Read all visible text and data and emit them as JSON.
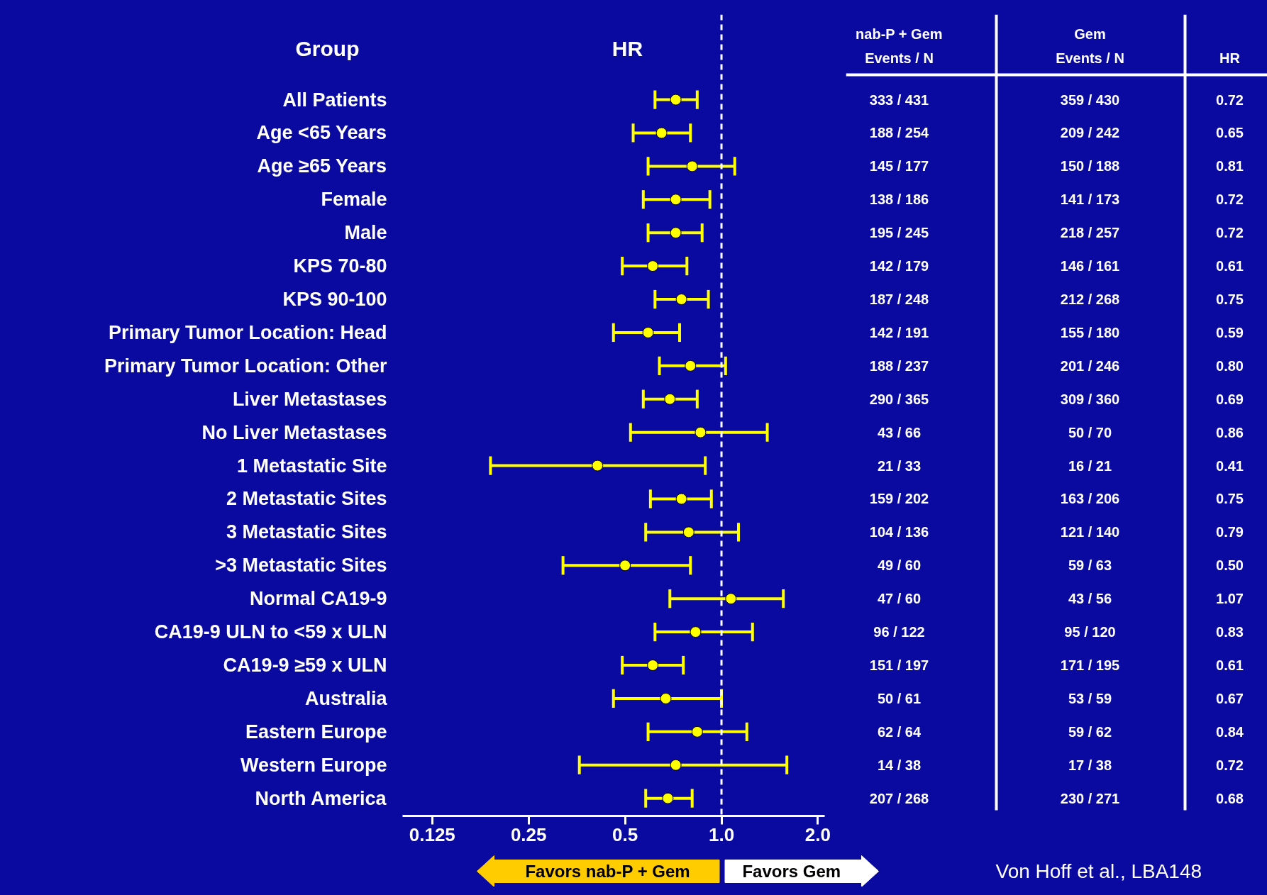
{
  "chart_data": {
    "type": "scatter",
    "orientation": "horizontal",
    "title": "HR",
    "ylabel": "Group",
    "categories": [
      "All Patients",
      "Age <65 Years",
      "Age ≥65 Years",
      "Female",
      "Male",
      "KPS 70-80",
      "KPS 90-100",
      "Primary Tumor Location: Head",
      "Primary Tumor Location: Other",
      "Liver Metastases",
      "No Liver Metastases",
      "1 Metastatic Site",
      "2 Metastatic Sites",
      "3 Metastatic Sites",
      ">3 Metastatic Sites",
      "Normal CA19-9",
      "CA19-9 ULN to <59 x ULN",
      "CA19-9 ≥59 x ULN",
      "Australia",
      "Eastern Europe",
      "Western Europe",
      "North America"
    ],
    "series": [
      {
        "color": "#ffff00",
        "values": [
          0.72,
          0.65,
          0.81,
          0.72,
          0.72,
          0.61,
          0.75,
          0.59,
          0.8,
          0.69,
          0.86,
          0.41,
          0.75,
          0.79,
          0.5,
          1.07,
          0.83,
          0.61,
          0.67,
          0.84,
          0.72,
          0.68
        ],
        "errors": [
          [
            0.62,
            0.84
          ],
          [
            0.53,
            0.8
          ],
          [
            0.59,
            1.1
          ],
          [
            0.57,
            0.92
          ],
          [
            0.59,
            0.87
          ],
          [
            0.49,
            0.78
          ],
          [
            0.62,
            0.91
          ],
          [
            0.46,
            0.74
          ],
          [
            0.64,
            1.03
          ],
          [
            0.57,
            0.84
          ],
          [
            0.52,
            1.39
          ],
          [
            0.19,
            0.89
          ],
          [
            0.6,
            0.93
          ],
          [
            0.58,
            1.13
          ],
          [
            0.32,
            0.8
          ],
          [
            0.69,
            1.56
          ],
          [
            0.62,
            1.25
          ],
          [
            0.49,
            0.76
          ],
          [
            0.46,
            1.0
          ],
          [
            0.59,
            1.2
          ],
          [
            0.36,
            1.6
          ],
          [
            0.58,
            0.81
          ]
        ],
        "value_labels": [
          "0.72",
          "0.65",
          "0.81",
          "0.72",
          "0.72",
          "0.61",
          "0.75",
          "0.59",
          "0.80",
          "0.69",
          "0.86",
          "0.41",
          "0.75",
          "0.79",
          "0.50",
          "1.07",
          "0.83",
          "0.61",
          "0.67",
          "0.84",
          "0.72",
          "0.68"
        ]
      }
    ],
    "xlim": [
      0.101,
      2.1
    ],
    "xticks": [
      {
        "value": 0.125,
        "label": "0.125"
      },
      0.25,
      0.5,
      {
        "value": 1,
        "label": "1.0"
      },
      {
        "value": 2,
        "label": "2.0"
      }
    ],
    "log": "x",
    "marker": "circle",
    "ref_lines": [
      {
        "axis": "x",
        "value": 1,
        "color": "#ffffff",
        "line_style": "dashed"
      }
    ],
    "annotations": [
      "nab-P + Gem",
      "Events / N",
      "Gem",
      "Events / N",
      "HR",
      "333 / 431",
      "188 / 254",
      "145 / 177",
      "138 / 186",
      "195 / 245",
      "142 / 179",
      "187 / 248",
      "142 / 191",
      "188 / 237",
      "290 / 365",
      "43 / 66",
      "21 / 33",
      "159 / 202",
      "104 / 136",
      "49 / 60",
      "47 / 60",
      "96 / 122",
      "151 / 197",
      "50 / 61",
      "62 / 64",
      "14 / 38",
      "207 / 268",
      "359 / 430",
      "209 / 242",
      "150 / 188",
      "141 / 173",
      "218 / 257",
      "146 / 161",
      "212 / 268",
      "155 / 180",
      "201 / 246",
      "309 / 360",
      "50 / 70",
      "16 / 21",
      "163 / 206",
      "121 / 140",
      "59 / 63",
      "43 / 56",
      "95 / 120",
      "171 / 195",
      "53 / 59",
      "59 / 62",
      "17 / 38",
      "230 / 271",
      "Favors nab-P + Gem",
      "Favors Gem",
      "Von Hoff et al., LBA148"
    ]
  }
}
